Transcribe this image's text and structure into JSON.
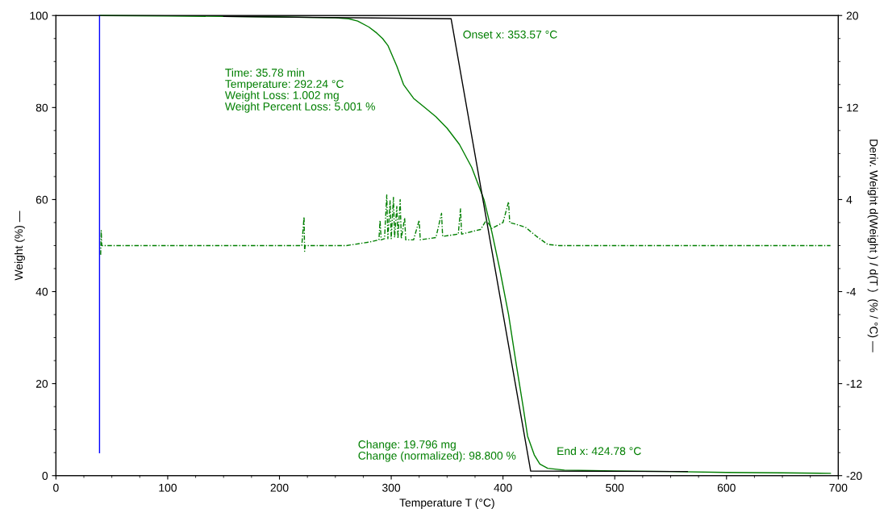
{
  "chart_data": {
    "type": "line",
    "xlabel": "Temperature T (°C)",
    "ylabel": "Weight (%) —",
    "y2label": "Deriv. Weight d(Weight ) / d(T )  (% / °C) —",
    "xlim": [
      0,
      700
    ],
    "xticks": [
      0,
      100,
      200,
      300,
      400,
      500,
      600,
      700
    ],
    "ylim": [
      0,
      100
    ],
    "yticks": [
      0,
      20,
      40,
      60,
      80,
      100
    ],
    "y2lim": [
      -20,
      20
    ],
    "y2ticks": [
      -20,
      -12,
      -4,
      4,
      12,
      20
    ],
    "grid": false,
    "legend": false,
    "marker": "none",
    "series": [
      {
        "color": "#007f00",
        "line_style": "solid",
        "x": [
          40,
          100,
          150,
          200,
          250,
          262,
          270,
          280,
          287,
          292.24,
          297,
          305,
          311,
          320,
          330,
          340,
          350,
          361,
          372,
          383,
          390,
          397,
          405,
          412,
          418,
          422,
          428,
          433,
          440,
          455,
          480,
          500,
          550,
          600,
          650,
          693
        ],
        "values": [
          100,
          99.9,
          99.8,
          99.7,
          99.5,
          99.3,
          98.8,
          97.5,
          96.2,
          95,
          93.5,
          89,
          85,
          82,
          80,
          78,
          75.5,
          72,
          67,
          60,
          53,
          45,
          35,
          24,
          15,
          8.6,
          4.5,
          2.5,
          1.6,
          1.2,
          1.1,
          1.0,
          0.9,
          0.7,
          0.6,
          0.5
        ]
      },
      {
        "color": "#007f00",
        "axis": "y2",
        "line_style": "dashed",
        "x": [
          40,
          40.5,
          41,
          220,
          222,
          222.5,
          223,
          260,
          280,
          289,
          290,
          291,
          294,
          296,
          297,
          299,
          300,
          302,
          303,
          305,
          306,
          308,
          309,
          312,
          313,
          320,
          325,
          326,
          340,
          345,
          346,
          360,
          362,
          363,
          380,
          385,
          390,
          400,
          405,
          406,
          410,
          420,
          430,
          440,
          450,
          693
        ],
        "values": [
          -0.8,
          1.3,
          0,
          0,
          2.5,
          -0.5,
          0,
          0,
          0.3,
          0.5,
          2.2,
          0.5,
          0.6,
          4.4,
          0.6,
          3.9,
          0.6,
          4.2,
          0.7,
          3.4,
          0.6,
          4.0,
          0.6,
          2.4,
          0.5,
          0.5,
          2.2,
          0.5,
          0.7,
          2.8,
          0.8,
          1.0,
          3.2,
          1.0,
          1.4,
          2.2,
          1.5,
          2.0,
          3.8,
          2.0,
          1.9,
          1.6,
          0.8,
          0.1,
          0,
          0
        ]
      },
      {
        "color": "#000000",
        "line_style": "solid",
        "x": [
          150,
          353.57,
          424.78,
          565
        ],
        "values": [
          99.8,
          99.3,
          1.0,
          0.9
        ]
      },
      {
        "color": "#0000ff",
        "line_style": "solid",
        "x": [
          39,
          39
        ],
        "values": [
          5,
          100
        ]
      }
    ],
    "annotations": [
      "Onset x: 353.57 °C",
      "Time: 35.78 min\nTemperature: 292.24 °C\nWeight Loss: 1.002 mg\nWeight Percent Loss: 5.001 %",
      "Change: 19.796 mg\nChange (normalized): 98.800 %",
      "End x: 424.78 °C"
    ]
  }
}
